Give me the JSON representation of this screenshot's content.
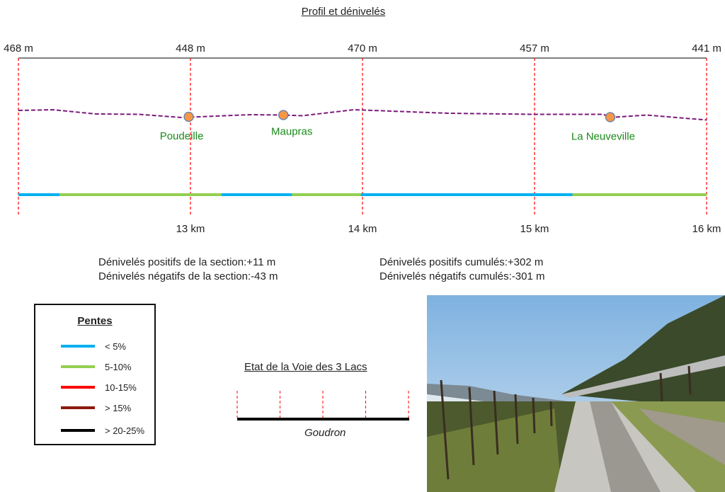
{
  "chart_data": {
    "type": "line",
    "title": "Profil et dénivelés",
    "x_unit": "km",
    "xlim": [
      12,
      16
    ],
    "x_ticks": [
      {
        "km": 13,
        "label": "13 km"
      },
      {
        "km": 14,
        "label": "14 km"
      },
      {
        "km": 15,
        "label": "15 km"
      },
      {
        "km": 16,
        "label": "16 km"
      }
    ],
    "elevation_labels": [
      {
        "km": 12,
        "label": "468 m"
      },
      {
        "km": 13,
        "label": "448 m"
      },
      {
        "km": 14,
        "label": "470 m"
      },
      {
        "km": 15,
        "label": "457 m"
      },
      {
        "km": 16,
        "label": "441 m"
      }
    ],
    "grid": "vertical dashed red at each km",
    "profile": {
      "x": [
        12.0,
        12.2,
        12.45,
        12.7,
        12.95,
        13.35,
        13.54,
        13.65,
        13.95,
        14.5,
        15.0,
        15.4,
        15.44,
        15.65,
        16.0
      ],
      "y": [
        468,
        470,
        458,
        457,
        448,
        456,
        455,
        453,
        470,
        460,
        457,
        457,
        448,
        455,
        441
      ],
      "color": "#7b1a7b"
    },
    "places": [
      {
        "name": "Poudeille",
        "km": 12.99,
        "elev": 450
      },
      {
        "name": "Maupras",
        "km": 13.54,
        "elev": 455
      },
      {
        "name": "La Neuveville",
        "km": 15.44,
        "elev": 449
      }
    ],
    "slope_segments": [
      {
        "from": 12.0,
        "to": 12.24,
        "class": "< 5%"
      },
      {
        "from": 12.24,
        "to": 13.18,
        "class": "5-10%"
      },
      {
        "from": 13.18,
        "to": 13.59,
        "class": "< 5%"
      },
      {
        "from": 13.59,
        "to": 13.99,
        "class": "5-10%"
      },
      {
        "from": 13.99,
        "to": 15.22,
        "class": "< 5%"
      },
      {
        "from": 15.22,
        "to": 16.0,
        "class": "5-10%"
      }
    ]
  },
  "stats": {
    "section_pos": "Dénivelés positifs de la section:+11 m",
    "section_neg": "Dénivelés négatifs de la section:-43 m",
    "cum_pos": "Dénivelés positifs cumulés:+302 m",
    "cum_neg": "Dénivelés négatifs cumulés:-301 m"
  },
  "legend": {
    "title": "Pentes",
    "items": [
      {
        "label": "< 5%",
        "color": "#00b0f0"
      },
      {
        "label": "5-10%",
        "color": "#92d050"
      },
      {
        "label": "10-15%",
        "color": "#ff0000"
      },
      {
        "label": "> 15%",
        "color": "#8b1a0e"
      },
      {
        "label": "> 20-25%",
        "color": "#000000"
      }
    ]
  },
  "surface": {
    "title": "Etat de la Voie des 3 Lacs",
    "label": "Goudron"
  },
  "colors": {
    "place_label": "#1a8a1a",
    "marker_fill": "#f79646",
    "marker_stroke": "#5b7fb0",
    "grid": "#ff0000"
  }
}
